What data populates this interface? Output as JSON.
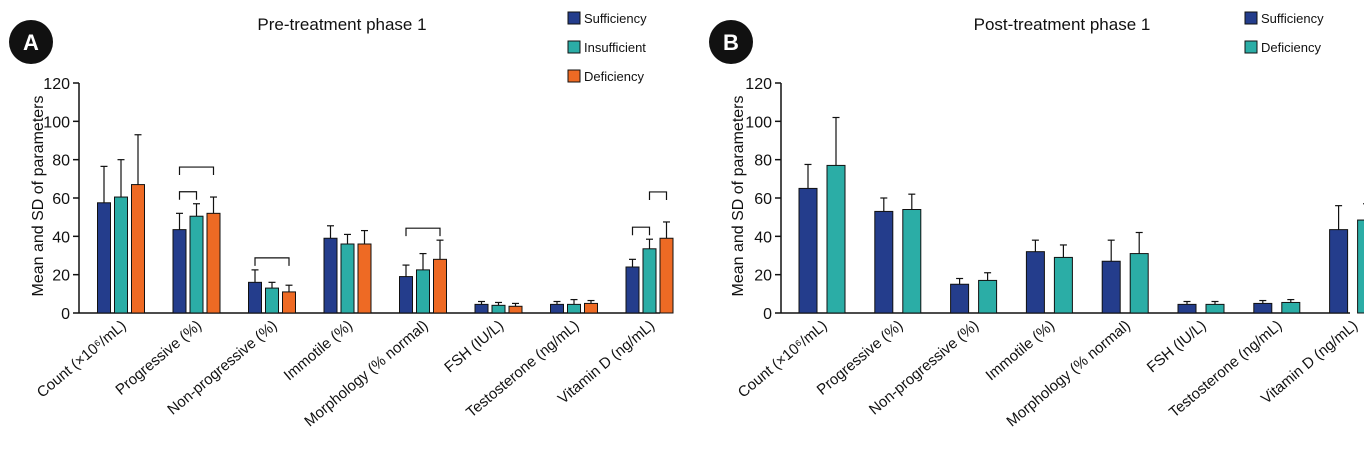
{
  "colors": {
    "Sufficiency": "#243d8c",
    "Insufficient": "#2bada6",
    "Deficiency": "#ee6a24",
    "Deficiency_B": "#2bada6"
  },
  "chart_data": [
    {
      "panel": "A",
      "type": "bar",
      "title": "Pre-treatment phase 1",
      "ylabel": "Mean and SD of parameters",
      "xlabel": "",
      "ylim": [
        0,
        120
      ],
      "yticks": [
        0,
        20,
        40,
        60,
        80,
        100,
        120
      ],
      "grid": false,
      "legend_position": "top-right",
      "categories": [
        "Count (×10⁶/mL)",
        "Progressive (%)",
        "Non-progressive (%)",
        "Immotile (%)",
        "Morphology (% normal)",
        "FSH (IU/L)",
        "Testosterone (ng/mL)",
        "Vitamin D (ng/mL)"
      ],
      "series": [
        {
          "name": "Sufficiency",
          "color": "#243d8c",
          "values": [
            57.5,
            43.5,
            16,
            39,
            19,
            4.5,
            4.5,
            24
          ],
          "sd": [
            19,
            8.5,
            6.5,
            6.5,
            6,
            1.5,
            1.5,
            4
          ]
        },
        {
          "name": "Insufficient",
          "color": "#2bada6",
          "values": [
            60.5,
            50.5,
            13,
            36,
            22.5,
            4,
            4.5,
            33.5
          ],
          "sd": [
            19.5,
            6.5,
            3,
            5,
            8.5,
            1.5,
            2.5,
            5
          ]
        },
        {
          "name": "Deficiency",
          "color": "#ee6a24",
          "values": [
            67,
            52,
            11,
            36,
            28,
            3.5,
            5,
            39
          ],
          "sd": [
            26,
            8.5,
            3.5,
            7,
            10,
            1.5,
            1.5,
            8.5
          ]
        }
      ],
      "significance_brackets": [
        {
          "category": 1,
          "from": 0,
          "to": 1,
          "level": 1
        },
        {
          "category": 1,
          "from": 0,
          "to": 2,
          "level": 2
        },
        {
          "category": 2,
          "from": 0,
          "to": 2,
          "level": 1
        },
        {
          "category": 4,
          "from": 0,
          "to": 2,
          "level": 1
        },
        {
          "category": 7,
          "from": 0,
          "to": 1,
          "level": 1
        },
        {
          "category": 7,
          "from": 1,
          "to": 2,
          "level": 2
        }
      ]
    },
    {
      "panel": "B",
      "type": "bar",
      "title": "Post-treatment phase 1",
      "ylabel": "Mean and SD of parameters",
      "xlabel": "",
      "ylim": [
        0,
        120
      ],
      "yticks": [
        0,
        20,
        40,
        60,
        80,
        100,
        120
      ],
      "grid": false,
      "legend_position": "top-right",
      "categories": [
        "Count (×10⁶/mL)",
        "Progressive (%)",
        "Non-progressive (%)",
        "Immotile (%)",
        "Morphology (% normal)",
        "FSH (IU/L)",
        "Testosterone (ng/mL)",
        "Vitamin D (ng/mL)"
      ],
      "series": [
        {
          "name": "Sufficiency",
          "color": "#243d8c",
          "values": [
            65,
            53,
            15,
            32,
            27,
            4.5,
            5,
            43.5
          ],
          "sd": [
            12.5,
            7,
            3,
            6,
            11,
            1.5,
            1.5,
            12.5
          ]
        },
        {
          "name": "Deficiency",
          "color": "#2bada6",
          "values": [
            77,
            54,
            17,
            29,
            31,
            4.5,
            5.5,
            48.5
          ],
          "sd": [
            25,
            8,
            4,
            6.5,
            11,
            1.5,
            1.5,
            8.5
          ]
        }
      ],
      "significance_brackets": []
    }
  ]
}
